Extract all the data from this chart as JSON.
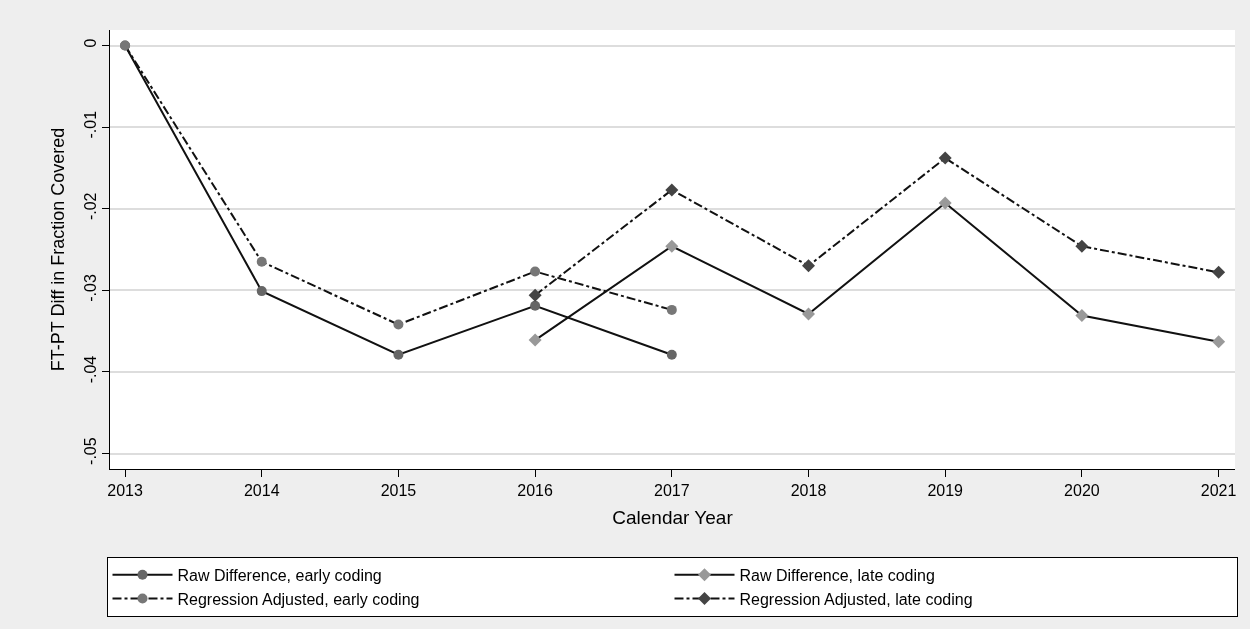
{
  "chart_data": {
    "type": "line",
    "xlabel": "Calendar Year",
    "ylabel": "FT-PT Diff in Fraction Covered",
    "x": [
      2013,
      2014,
      2015,
      2016,
      2017,
      2018,
      2019,
      2020,
      2021
    ],
    "xlim": [
      2012.89,
      2021.12
    ],
    "xticks": [
      2013,
      2014,
      2015,
      2016,
      2017,
      2018,
      2019,
      2020,
      2021
    ],
    "ylim": [
      -0.0519,
      0.0019
    ],
    "yticks": [
      {
        "value": 0,
        "label": "0"
      },
      {
        "value": -0.01,
        "label": "-.01"
      },
      {
        "value": -0.02,
        "label": "-.02"
      },
      {
        "value": -0.03,
        "label": "-.03"
      },
      {
        "value": -0.04,
        "label": "-.04"
      },
      {
        "value": -0.05,
        "label": "-.05"
      }
    ],
    "grid": "y",
    "legend": "bottom",
    "series": [
      {
        "name": "Raw Difference, early coding",
        "color": "#666666",
        "marker": "circle",
        "line_style": "solid",
        "values": [
          0,
          -0.0301,
          -0.0379,
          -0.0319,
          -0.0379,
          null,
          null,
          null,
          null
        ]
      },
      {
        "name": "Raw Difference, late coding",
        "color": "#999999",
        "marker": "diamond",
        "line_style": "solid",
        "values": [
          null,
          null,
          null,
          -0.0361,
          -0.0246,
          -0.0329,
          -0.0193,
          -0.0331,
          -0.0363
        ]
      },
      {
        "name": "Regression Adjusted, early coding",
        "color": "#777777",
        "marker": "circle",
        "line_style": "dashed",
        "values": [
          0,
          -0.0265,
          -0.0342,
          -0.0277,
          -0.0324,
          null,
          null,
          null,
          null
        ]
      },
      {
        "name": "Regression Adjusted, late coding",
        "color": "#444444",
        "marker": "diamond",
        "line_style": "dashed",
        "values": [
          null,
          null,
          null,
          -0.0306,
          -0.0177,
          -0.027,
          -0.0138,
          -0.0246,
          -0.0278
        ]
      }
    ]
  }
}
